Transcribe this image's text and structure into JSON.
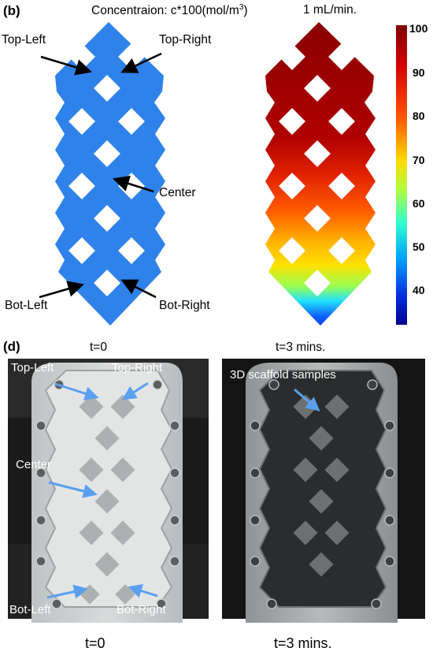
{
  "panel_b": {
    "label": "(b)",
    "title": "Concentraion: c*100(mol/m",
    "title_sup": "3",
    "title_close": ")",
    "flow_rate": "1 mL/min.",
    "annotations": {
      "top_left": "Top-Left",
      "top_right": "Top-Right",
      "center": "Center",
      "bot_left": "Bot-Left",
      "bot_right": "Bot-Right"
    },
    "colorbar": {
      "ticks": [
        "100",
        "90",
        "80",
        "70",
        "60",
        "50",
        "40"
      ],
      "colors": [
        "#7f0000",
        "#d40000",
        "#ff6a00",
        "#ffd800",
        "#c8ff37",
        "#35ffc8",
        "#00b4ff",
        "#0047ff",
        "#00008f"
      ]
    },
    "mesh_color": "#2e7fe8"
  },
  "panel_d": {
    "label": "(d)",
    "left_time": "t=0",
    "right_time": "t=3 mins.",
    "left_annotations": {
      "top_left": "Top-Left",
      "top_right": "Top-Right",
      "center": "Center",
      "bot_left": "Bot-Left",
      "bot_right": "Bot-Right"
    },
    "right_annotation": "3D scaffold samples",
    "arrow_color": "#5a9ff0",
    "bottom_left_caption": "t=0",
    "bottom_right_caption": "t=3 mins."
  }
}
